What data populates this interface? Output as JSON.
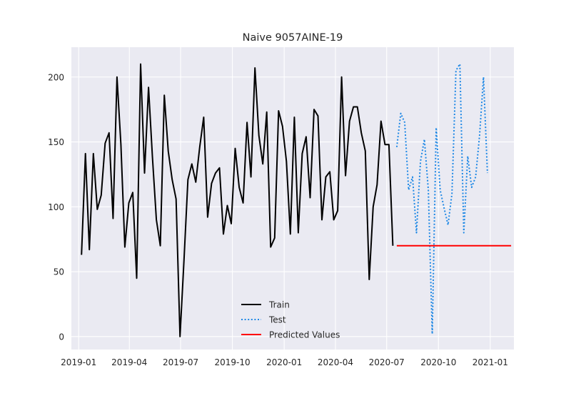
{
  "chart_data": {
    "type": "line",
    "title": "Naive 9057AINE-19",
    "xlabel": "",
    "ylabel": "",
    "xlim": [
      "2018-12-19",
      "2021-02-12"
    ],
    "ylim": [
      -10,
      223
    ],
    "x_ticks": [
      "2019-01-01",
      "2019-04-01",
      "2019-07-01",
      "2019-10-01",
      "2020-01-01",
      "2020-04-01",
      "2020-07-01",
      "2020-10-01",
      "2021-01-01"
    ],
    "x_tick_labels": [
      "2019-01",
      "2019-04",
      "2019-07",
      "2019-10",
      "2020-01",
      "2020-04",
      "2020-07",
      "2020-10",
      "2021-01"
    ],
    "y_ticks": [
      0,
      50,
      100,
      150,
      200
    ],
    "y_tick_labels": [
      "0",
      "50",
      "100",
      "150",
      "200"
    ],
    "grid": true,
    "legend_position": "lower-center",
    "background_color": "#eaeaf2",
    "series": [
      {
        "name": "Train",
        "color": "#000000",
        "style": "solid",
        "points": [
          [
            "2019-01-06",
            63
          ],
          [
            "2019-01-13",
            141
          ],
          [
            "2019-01-20",
            67
          ],
          [
            "2019-01-27",
            141
          ],
          [
            "2019-02-03",
            98
          ],
          [
            "2019-02-10",
            109
          ],
          [
            "2019-02-17",
            149
          ],
          [
            "2019-02-24",
            157
          ],
          [
            "2019-03-03",
            91
          ],
          [
            "2019-03-10",
            200
          ],
          [
            "2019-03-17",
            148
          ],
          [
            "2019-03-24",
            69
          ],
          [
            "2019-03-31",
            103
          ],
          [
            "2019-04-07",
            111
          ],
          [
            "2019-04-14",
            45
          ],
          [
            "2019-04-21",
            210
          ],
          [
            "2019-04-28",
            126
          ],
          [
            "2019-05-05",
            192
          ],
          [
            "2019-05-12",
            138
          ],
          [
            "2019-05-19",
            90
          ],
          [
            "2019-05-26",
            70
          ],
          [
            "2019-06-02",
            186
          ],
          [
            "2019-06-09",
            143
          ],
          [
            "2019-06-16",
            121
          ],
          [
            "2019-06-23",
            106
          ],
          [
            "2019-06-30",
            0
          ],
          [
            "2019-07-07",
            59
          ],
          [
            "2019-07-14",
            121
          ],
          [
            "2019-07-21",
            133
          ],
          [
            "2019-07-28",
            119
          ],
          [
            "2019-08-04",
            146
          ],
          [
            "2019-08-11",
            169
          ],
          [
            "2019-08-18",
            92
          ],
          [
            "2019-08-25",
            118
          ],
          [
            "2019-09-01",
            126
          ],
          [
            "2019-09-08",
            130
          ],
          [
            "2019-09-15",
            79
          ],
          [
            "2019-09-22",
            101
          ],
          [
            "2019-09-29",
            87
          ],
          [
            "2019-10-06",
            145
          ],
          [
            "2019-10-13",
            115
          ],
          [
            "2019-10-20",
            103
          ],
          [
            "2019-10-27",
            165
          ],
          [
            "2019-11-03",
            123
          ],
          [
            "2019-11-10",
            207
          ],
          [
            "2019-11-17",
            155
          ],
          [
            "2019-11-24",
            133
          ],
          [
            "2019-12-01",
            173
          ],
          [
            "2019-12-08",
            69
          ],
          [
            "2019-12-15",
            76
          ],
          [
            "2019-12-22",
            174
          ],
          [
            "2019-12-29",
            162
          ],
          [
            "2020-01-05",
            135
          ],
          [
            "2020-01-12",
            79
          ],
          [
            "2020-01-19",
            169
          ],
          [
            "2020-01-26",
            80
          ],
          [
            "2020-02-02",
            141
          ],
          [
            "2020-02-09",
            154
          ],
          [
            "2020-02-16",
            107
          ],
          [
            "2020-02-23",
            175
          ],
          [
            "2020-03-01",
            170
          ],
          [
            "2020-03-08",
            90
          ],
          [
            "2020-03-15",
            123
          ],
          [
            "2020-03-22",
            127
          ],
          [
            "2020-03-29",
            90
          ],
          [
            "2020-04-05",
            97
          ],
          [
            "2020-04-12",
            200
          ],
          [
            "2020-04-19",
            124
          ],
          [
            "2020-04-26",
            166
          ],
          [
            "2020-05-03",
            177
          ],
          [
            "2020-05-10",
            177
          ],
          [
            "2020-05-17",
            157
          ],
          [
            "2020-05-24",
            143
          ],
          [
            "2020-05-31",
            44
          ],
          [
            "2020-06-07",
            100
          ],
          [
            "2020-06-14",
            117
          ],
          [
            "2020-06-21",
            166
          ],
          [
            "2020-06-28",
            148
          ],
          [
            "2020-07-05",
            148
          ],
          [
            "2020-07-12",
            70
          ]
        ]
      },
      {
        "name": "Test",
        "color": "#1e88e5",
        "style": "dotted",
        "points": [
          [
            "2020-07-19",
            146
          ],
          [
            "2020-07-26",
            172
          ],
          [
            "2020-08-02",
            165
          ],
          [
            "2020-08-09",
            113
          ],
          [
            "2020-08-16",
            123
          ],
          [
            "2020-08-23",
            80
          ],
          [
            "2020-08-30",
            135
          ],
          [
            "2020-09-06",
            152
          ],
          [
            "2020-09-13",
            113
          ],
          [
            "2020-09-20",
            2
          ],
          [
            "2020-09-27",
            161
          ],
          [
            "2020-10-04",
            113
          ],
          [
            "2020-10-11",
            99
          ],
          [
            "2020-10-18",
            86
          ],
          [
            "2020-10-25",
            110
          ],
          [
            "2020-11-01",
            205
          ],
          [
            "2020-11-08",
            210
          ],
          [
            "2020-11-15",
            80
          ],
          [
            "2020-11-22",
            139
          ],
          [
            "2020-11-29",
            115
          ],
          [
            "2020-12-06",
            123
          ],
          [
            "2020-12-13",
            155
          ],
          [
            "2020-12-20",
            200
          ],
          [
            "2020-12-27",
            126
          ]
        ]
      },
      {
        "name": "Predicted Values",
        "color": "#ff0000",
        "style": "solid",
        "points": [
          [
            "2020-07-19",
            70
          ],
          [
            "2021-02-07",
            70
          ]
        ]
      }
    ]
  }
}
